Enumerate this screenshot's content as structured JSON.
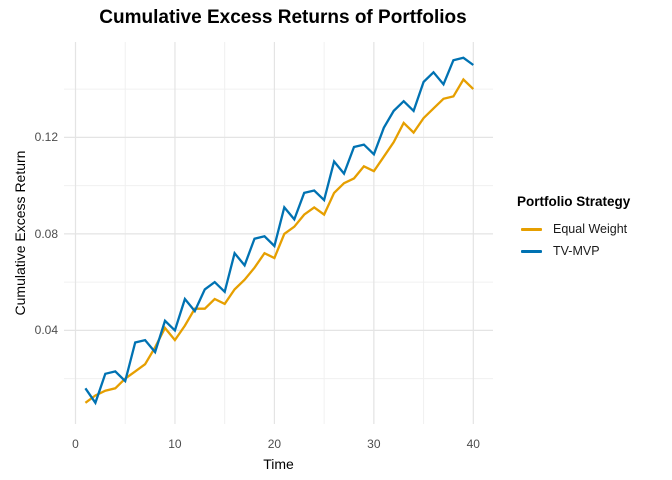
{
  "chart_data": {
    "type": "line",
    "title": "Cumulative Excess Returns of Portfolios",
    "xlabel": "Time",
    "ylabel": "Cumulative Excess Return",
    "legend_title": "Portfolio Strategy",
    "legend_position": "right",
    "grid": "on",
    "background": "#ffffff",
    "major_grid_color": "#e4e4e4",
    "minor_grid_color": "#f0f0f0",
    "xlim": [
      -0.95,
      41.95
    ],
    "ylim": [
      0.002,
      0.16
    ],
    "x_ticks": {
      "values": [
        0,
        10,
        20,
        30,
        40
      ],
      "labels": [
        "0",
        "10",
        "20",
        "30",
        "40"
      ]
    },
    "x_minor": [
      5,
      15,
      25,
      35
    ],
    "y_ticks": {
      "values": [
        0.04,
        0.08,
        0.12
      ],
      "labels": [
        "0.04",
        "0.08",
        "0.12"
      ]
    },
    "y_minor": [
      0.02,
      0.06,
      0.1,
      0.14
    ],
    "x": [
      1,
      2,
      3,
      4,
      5,
      6,
      7,
      8,
      9,
      10,
      11,
      12,
      13,
      14,
      15,
      16,
      17,
      18,
      19,
      20,
      21,
      22,
      23,
      24,
      25,
      26,
      27,
      28,
      29,
      30,
      31,
      32,
      33,
      34,
      35,
      36,
      37,
      38,
      39,
      40
    ],
    "series": [
      {
        "name": "Equal Weight",
        "color": "#E69F00",
        "values": [
          0.01,
          0.013,
          0.015,
          0.016,
          0.02,
          0.023,
          0.026,
          0.033,
          0.041,
          0.036,
          0.042,
          0.049,
          0.049,
          0.053,
          0.051,
          0.057,
          0.061,
          0.066,
          0.072,
          0.07,
          0.08,
          0.083,
          0.088,
          0.091,
          0.088,
          0.097,
          0.101,
          0.103,
          0.108,
          0.106,
          0.112,
          0.118,
          0.126,
          0.122,
          0.128,
          0.132,
          0.136,
          0.137,
          0.144,
          0.14
        ]
      },
      {
        "name": "TV-MVP",
        "color": "#0072B2",
        "values": [
          0.016,
          0.01,
          0.022,
          0.023,
          0.019,
          0.035,
          0.036,
          0.031,
          0.044,
          0.04,
          0.053,
          0.048,
          0.057,
          0.06,
          0.056,
          0.072,
          0.067,
          0.078,
          0.079,
          0.075,
          0.091,
          0.086,
          0.097,
          0.098,
          0.094,
          0.11,
          0.105,
          0.116,
          0.117,
          0.113,
          0.124,
          0.131,
          0.135,
          0.131,
          0.143,
          0.147,
          0.142,
          0.152,
          0.153,
          0.15
        ]
      }
    ]
  }
}
